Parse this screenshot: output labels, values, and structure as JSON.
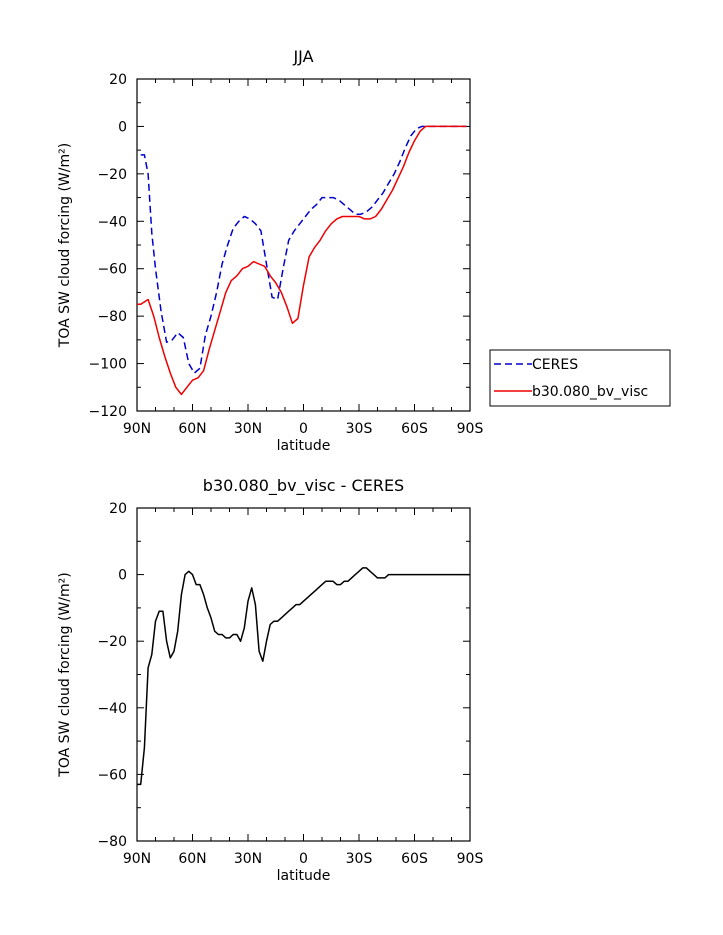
{
  "chart_data": [
    {
      "type": "line",
      "title": "JJA",
      "xlabel": "latitude",
      "ylabel": "TOA SW cloud forcing (W/m²)",
      "xlim": [
        90,
        -90
      ],
      "ylim": [
        -120,
        20
      ],
      "x_ticks": [
        {
          "value": 90,
          "label": "90N"
        },
        {
          "value": 60,
          "label": "60N"
        },
        {
          "value": 30,
          "label": "30N"
        },
        {
          "value": 0,
          "label": "0"
        },
        {
          "value": -30,
          "label": "30S"
        },
        {
          "value": -60,
          "label": "60S"
        },
        {
          "value": -90,
          "label": "90S"
        }
      ],
      "y_ticks": [
        20,
        0,
        -20,
        -40,
        -60,
        -80,
        -100,
        -120
      ],
      "legend_position": "right",
      "series": [
        {
          "name": "CERES",
          "color": "#0000cc",
          "dash": "dashed",
          "x": [
            88,
            86,
            84,
            82,
            80,
            77,
            74,
            71,
            68,
            65,
            62,
            59,
            56,
            53,
            50,
            47,
            44,
            41,
            38,
            35,
            32,
            29,
            26,
            23,
            20,
            17,
            14,
            11,
            8,
            5,
            2,
            -1,
            -4,
            -7,
            -10,
            -13,
            -16,
            -19,
            -22,
            -25,
            -28,
            -31,
            -34,
            -37,
            -40,
            -43,
            -46,
            -49,
            -52,
            -55,
            -58,
            -61,
            -64,
            -67,
            -70,
            -73,
            -76,
            -79,
            -82,
            -85,
            -88
          ],
          "y": [
            -12,
            -12,
            -20,
            -45,
            -60,
            -78,
            -91,
            -90,
            -87,
            -89,
            -100,
            -104,
            -102,
            -88,
            -80,
            -70,
            -58,
            -50,
            -43,
            -40,
            -38,
            -39,
            -41,
            -44,
            -58,
            -72,
            -73,
            -60,
            -48,
            -44,
            -41,
            -38,
            -35,
            -33,
            -30,
            -30,
            -30,
            -31,
            -33,
            -35,
            -37,
            -37,
            -36,
            -34,
            -31,
            -28,
            -24,
            -20,
            -15,
            -9,
            -4,
            -1,
            0,
            0,
            0,
            0,
            0,
            0,
            0,
            0,
            0
          ]
        },
        {
          "name": "b30.080_bv_visc",
          "color": "#ee0000",
          "dash": "solid",
          "x": [
            90,
            88,
            86,
            84,
            81,
            78,
            75,
            72,
            69,
            66,
            63,
            60,
            57,
            54,
            51,
            48,
            45,
            42,
            39,
            36,
            33,
            30,
            27,
            24,
            21,
            18,
            15,
            12,
            9,
            6,
            3,
            0,
            -3,
            -6,
            -9,
            -12,
            -15,
            -18,
            -21,
            -24,
            -27,
            -30,
            -33,
            -36,
            -39,
            -42,
            -45,
            -48,
            -51,
            -54,
            -57,
            -60,
            -63,
            -66,
            -69,
            -72,
            -75,
            -78,
            -81,
            -84,
            -88
          ],
          "y": [
            -75,
            -75,
            -74,
            -73,
            -80,
            -89,
            -97,
            -104,
            -110,
            -113,
            -110,
            -107,
            -106,
            -103,
            -94,
            -86,
            -78,
            -70,
            -65,
            -63,
            -60,
            -59,
            -57,
            -58,
            -59,
            -63,
            -66,
            -70,
            -76,
            -83,
            -81,
            -67,
            -55,
            -51,
            -48,
            -44,
            -41,
            -39,
            -38,
            -38,
            -38,
            -38,
            -39,
            -39,
            -38,
            -35,
            -31,
            -27,
            -22,
            -17,
            -11,
            -6,
            -2,
            0,
            0,
            0,
            0,
            0,
            0,
            0,
            0
          ]
        }
      ]
    },
    {
      "type": "line",
      "title": "b30.080_bv_visc - CERES",
      "xlabel": "latitude",
      "ylabel": "TOA SW cloud forcing (W/m²)",
      "xlim": [
        90,
        -90
      ],
      "ylim": [
        -80,
        20
      ],
      "x_ticks": [
        {
          "value": 90,
          "label": "90N"
        },
        {
          "value": 60,
          "label": "60N"
        },
        {
          "value": 30,
          "label": "30N"
        },
        {
          "value": 0,
          "label": "0"
        },
        {
          "value": -30,
          "label": "30S"
        },
        {
          "value": -60,
          "label": "60S"
        },
        {
          "value": -90,
          "label": "90S"
        }
      ],
      "y_ticks": [
        20,
        0,
        -20,
        -40,
        -60,
        -80
      ],
      "series": [
        {
          "color": "#000000",
          "dash": "solid",
          "x": [
            90,
            88,
            86,
            84,
            82,
            80,
            78,
            76,
            74,
            72,
            70,
            68,
            66,
            64,
            62,
            60,
            58,
            56,
            54,
            52,
            50,
            48,
            46,
            44,
            42,
            40,
            38,
            36,
            34,
            32,
            30,
            28,
            26,
            24,
            22,
            20,
            18,
            16,
            14,
            12,
            10,
            8,
            6,
            4,
            2,
            0,
            -2,
            -4,
            -6,
            -8,
            -10,
            -12,
            -14,
            -16,
            -18,
            -20,
            -22,
            -24,
            -26,
            -28,
            -30,
            -32,
            -34,
            -36,
            -38,
            -40,
            -42,
            -44,
            -46,
            -48,
            -50,
            -52,
            -54,
            -56,
            -58,
            -60,
            -62,
            -64,
            -66,
            -68,
            -70,
            -72,
            -74,
            -76,
            -78,
            -80,
            -82,
            -84,
            -86,
            -88,
            -90
          ],
          "y": [
            -63,
            -63,
            -52,
            -28,
            -24,
            -14,
            -11,
            -11,
            -20,
            -25,
            -23,
            -17,
            -6,
            0,
            1,
            0,
            -3,
            -3,
            -6,
            -10,
            -13,
            -17,
            -18,
            -18,
            -19,
            -19,
            -18,
            -18,
            -20,
            -16,
            -8,
            -4,
            -9,
            -23,
            -26,
            -20,
            -15,
            -14,
            -14,
            -13,
            -12,
            -11,
            -10,
            -9,
            -9,
            -8,
            -7,
            -6,
            -5,
            -4,
            -3,
            -2,
            -2,
            -2,
            -3,
            -3,
            -2,
            -2,
            -1,
            0,
            1,
            2,
            2,
            1,
            0,
            -1,
            -1,
            -1,
            0,
            0,
            0,
            0,
            0,
            0,
            0,
            0,
            0,
            0,
            0,
            0,
            0,
            0,
            0,
            0,
            0,
            0,
            0,
            0,
            0,
            0,
            0
          ]
        }
      ]
    }
  ]
}
